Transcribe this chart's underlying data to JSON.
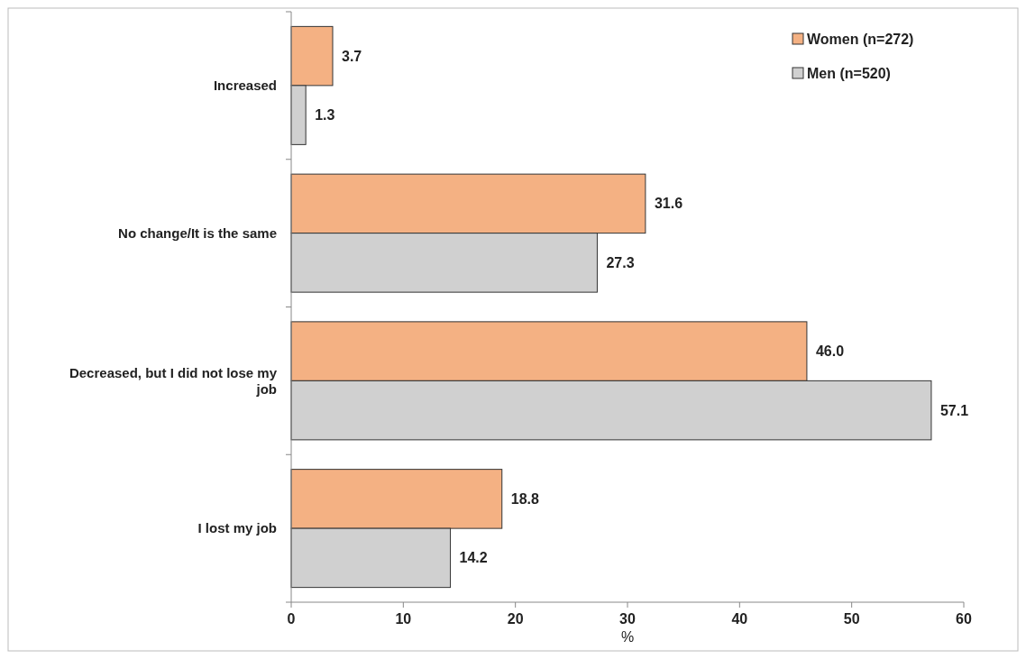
{
  "chart_data": {
    "type": "bar",
    "orientation": "horizontal",
    "xlabel": "%",
    "categories": [
      "Increased",
      "No change/It is the same",
      "Decreased, but I did not lose my job",
      "I lost my job"
    ],
    "series": [
      {
        "name": "Women (n=272)",
        "color": "#f4b183",
        "values": [
          3.7,
          31.6,
          46.0,
          18.8
        ],
        "value_labels": [
          "3.7",
          "31.6",
          "46.0",
          "18.8"
        ]
      },
      {
        "name": "Men (n=520)",
        "color": "#d0d0d0",
        "values": [
          1.3,
          27.3,
          57.1,
          14.2
        ],
        "value_labels": [
          "1.3",
          "27.3",
          "57.1",
          "14.2"
        ]
      }
    ],
    "xlim": [
      0,
      60
    ],
    "xticks": [
      0,
      10,
      20,
      30,
      40,
      50,
      60
    ],
    "legend": "top right",
    "grid": false
  }
}
